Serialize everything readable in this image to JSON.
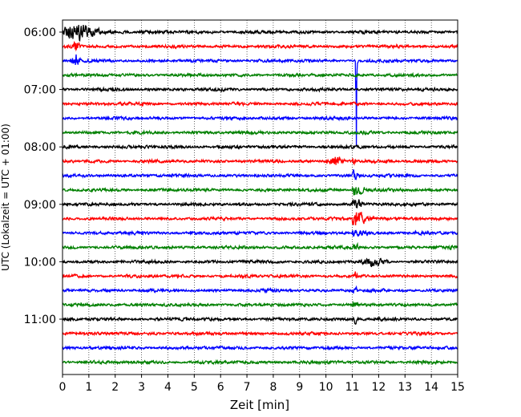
{
  "chart_data": {
    "type": "line",
    "subtype": "helicorder-seismogram",
    "title": "",
    "xlabel": "Zeit  [min]",
    "ylabel": "UTC (Lokalzeit = UTC + 01:00)",
    "xlim": [
      0,
      15
    ],
    "x_ticks": [
      0,
      1,
      2,
      3,
      4,
      5,
      6,
      7,
      8,
      9,
      10,
      11,
      12,
      13,
      14,
      15
    ],
    "x_tick_labels": [
      "0",
      "1",
      "2",
      "3",
      "4",
      "5",
      "6",
      "7",
      "8",
      "9",
      "10",
      "11",
      "12",
      "13",
      "14",
      "15"
    ],
    "y_tick_labels": [
      "06:00",
      "07:00",
      "08:00",
      "09:00",
      "10:00",
      "11:00"
    ],
    "grid": "vertical-dotted",
    "trace_minutes": 15,
    "trace_colors": [
      "#000000",
      "#ff0000",
      "#0000ff",
      "#008000"
    ],
    "trace_count": 24,
    "traces": [
      {
        "start": "06:00",
        "color": "#000000"
      },
      {
        "start": "06:15",
        "color": "#ff0000"
      },
      {
        "start": "06:30",
        "color": "#0000ff"
      },
      {
        "start": "06:45",
        "color": "#008000"
      },
      {
        "start": "07:00",
        "color": "#000000"
      },
      {
        "start": "07:15",
        "color": "#ff0000"
      },
      {
        "start": "07:30",
        "color": "#0000ff"
      },
      {
        "start": "07:45",
        "color": "#008000"
      },
      {
        "start": "08:00",
        "color": "#000000"
      },
      {
        "start": "08:15",
        "color": "#ff0000"
      },
      {
        "start": "08:30",
        "color": "#0000ff"
      },
      {
        "start": "08:45",
        "color": "#008000"
      },
      {
        "start": "09:00",
        "color": "#000000"
      },
      {
        "start": "09:15",
        "color": "#ff0000"
      },
      {
        "start": "09:30",
        "color": "#0000ff"
      },
      {
        "start": "09:45",
        "color": "#008000"
      },
      {
        "start": "10:00",
        "color": "#000000"
      },
      {
        "start": "10:15",
        "color": "#ff0000"
      },
      {
        "start": "10:30",
        "color": "#0000ff"
      },
      {
        "start": "10:45",
        "color": "#008000"
      },
      {
        "start": "11:00",
        "color": "#000000"
      },
      {
        "start": "11:15",
        "color": "#ff0000"
      },
      {
        "start": "11:30",
        "color": "#0000ff"
      },
      {
        "start": "11:45",
        "color": "#008000"
      }
    ],
    "events": [
      {
        "trace": 0,
        "start_min": 0.0,
        "end_min": 3.0,
        "peak_min": 0.5,
        "description": "local disturbance at start"
      },
      {
        "trace": 1,
        "start_min": 0.3,
        "end_min": 0.8,
        "peak_min": 0.5
      },
      {
        "trace": 2,
        "start_min": 0.3,
        "end_min": 0.8,
        "peak_min": 0.5
      },
      {
        "trace": 2,
        "start_min": 11.12,
        "end_min": 11.2,
        "peak_min": 11.15,
        "description": "large spike"
      },
      {
        "trace": 9,
        "start_min": 10.0,
        "end_min": 10.8,
        "peak_min": 10.4
      },
      {
        "trace": 9,
        "start_min": 11.0,
        "end_min": 11.2,
        "peak_min": 11.05
      },
      {
        "trace": 10,
        "start_min": 10.95,
        "end_min": 11.5,
        "peak_min": 11.05
      },
      {
        "trace": 11,
        "start_min": 11.0,
        "end_min": 12.3,
        "peak_min": 11.1
      },
      {
        "trace": 12,
        "start_min": 11.0,
        "end_min": 12.0,
        "peak_min": 11.1
      },
      {
        "trace": 13,
        "start_min": 11.0,
        "end_min": 12.5,
        "peak_min": 11.1
      },
      {
        "trace": 14,
        "start_min": 11.0,
        "end_min": 12.5,
        "peak_min": 11.1
      },
      {
        "trace": 15,
        "start_min": 11.0,
        "end_min": 11.5,
        "peak_min": 11.1
      },
      {
        "trace": 16,
        "start_min": 11.2,
        "end_min": 12.4,
        "peak_min": 11.8
      },
      {
        "trace": 17,
        "start_min": 11.0,
        "end_min": 11.3,
        "peak_min": 11.1
      },
      {
        "trace": 18,
        "start_min": 11.0,
        "end_min": 11.3,
        "peak_min": 11.1
      },
      {
        "trace": 19,
        "start_min": 11.0,
        "end_min": 11.3,
        "peak_min": 11.1
      },
      {
        "trace": 20,
        "start_min": 11.0,
        "end_min": 11.3,
        "peak_min": 11.1
      }
    ]
  }
}
